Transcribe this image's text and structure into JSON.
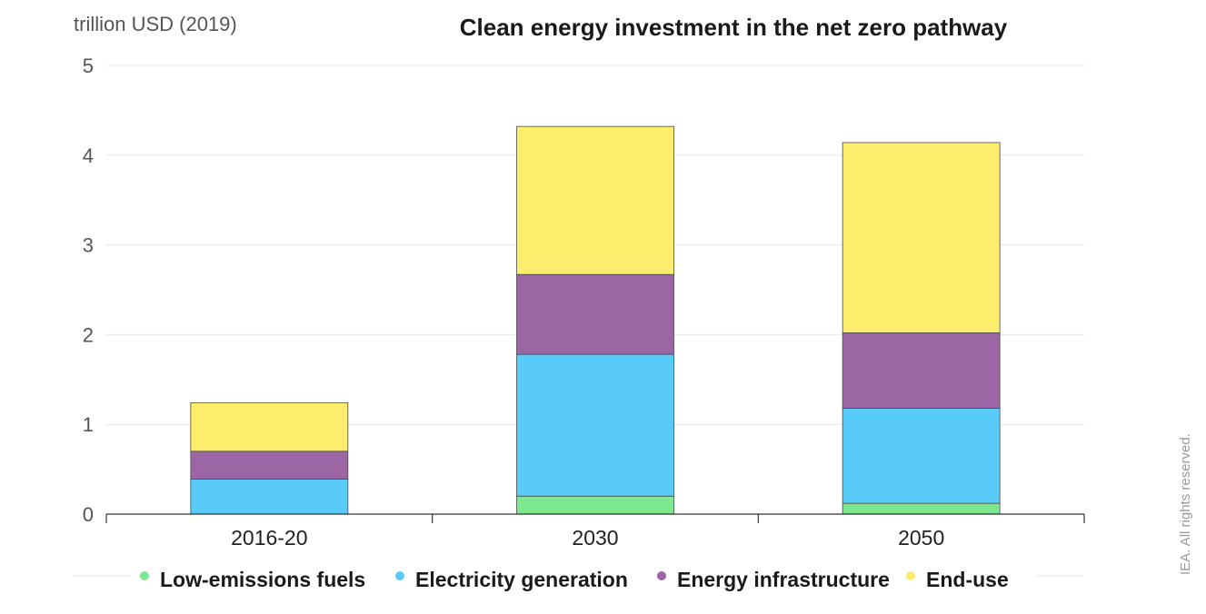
{
  "chart_data": {
    "type": "bar",
    "stacked": true,
    "title": "Clean energy investment in the net zero pathway",
    "ylabel": "trillion USD (2019)",
    "xlabel": "",
    "categories": [
      "2016-20",
      "2030",
      "2050"
    ],
    "ylim": [
      0,
      5
    ],
    "yticks": [
      "0",
      "1",
      "2",
      "3",
      "4",
      "5"
    ],
    "series": [
      {
        "name": "Low-emissions fuels",
        "color": "#7de88f",
        "values": [
          0.0,
          0.2,
          0.12
        ]
      },
      {
        "name": "Electricity generation",
        "color": "#58cbf9",
        "values": [
          0.39,
          1.58,
          1.06
        ]
      },
      {
        "name": "Energy infrastructure",
        "color": "#9c66a4",
        "values": [
          0.31,
          0.89,
          0.84
        ]
      },
      {
        "name": "End-use",
        "color": "#fded6d",
        "values": [
          0.54,
          1.65,
          2.12
        ]
      }
    ],
    "grid": true,
    "legend_position": "bottom"
  },
  "credit": "IEA. All rights reserved."
}
